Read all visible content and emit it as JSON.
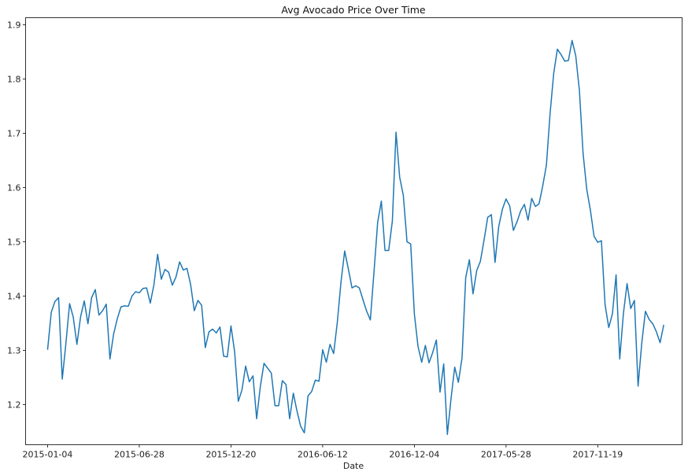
{
  "chart_data": {
    "type": "line",
    "title": "Avg Avocado Price Over Time",
    "xlabel": "Date",
    "ylabel": "",
    "x_tick_labels": [
      "2015-01-04",
      "2015-06-28",
      "2015-12-20",
      "2016-06-12",
      "2016-12-04",
      "2017-05-28",
      "2017-11-19"
    ],
    "y_tick_labels": [
      "1.2",
      "1.3",
      "1.4",
      "1.5",
      "1.6",
      "1.7",
      "1.8",
      "1.9"
    ],
    "ylim": [
      1.126,
      1.913
    ],
    "xlim": [
      "2014-11-23",
      "2018-04-29"
    ],
    "grid": false,
    "line_color": "#1f77b4",
    "x": [
      "2015-01-04",
      "2015-01-11",
      "2015-01-18",
      "2015-01-25",
      "2015-02-01",
      "2015-02-08",
      "2015-02-15",
      "2015-02-22",
      "2015-03-01",
      "2015-03-08",
      "2015-03-15",
      "2015-03-22",
      "2015-03-29",
      "2015-04-05",
      "2015-04-12",
      "2015-04-19",
      "2015-04-26",
      "2015-05-03",
      "2015-05-10",
      "2015-05-17",
      "2015-05-24",
      "2015-05-31",
      "2015-06-07",
      "2015-06-14",
      "2015-06-21",
      "2015-06-28",
      "2015-07-05",
      "2015-07-12",
      "2015-07-19",
      "2015-07-26",
      "2015-08-02",
      "2015-08-09",
      "2015-08-16",
      "2015-08-23",
      "2015-08-30",
      "2015-09-06",
      "2015-09-13",
      "2015-09-20",
      "2015-09-27",
      "2015-10-04",
      "2015-10-11",
      "2015-10-18",
      "2015-10-25",
      "2015-11-01",
      "2015-11-08",
      "2015-11-15",
      "2015-11-22",
      "2015-11-29",
      "2015-12-06",
      "2015-12-13",
      "2015-12-20",
      "2015-12-27",
      "2016-01-03",
      "2016-01-10",
      "2016-01-17",
      "2016-01-24",
      "2016-01-31",
      "2016-02-07",
      "2016-02-14",
      "2016-02-21",
      "2016-02-28",
      "2016-03-06",
      "2016-03-13",
      "2016-03-20",
      "2016-03-27",
      "2016-04-03",
      "2016-04-10",
      "2016-04-17",
      "2016-04-24",
      "2016-05-01",
      "2016-05-08",
      "2016-05-15",
      "2016-05-22",
      "2016-05-29",
      "2016-06-05",
      "2016-06-12",
      "2016-06-19",
      "2016-06-26",
      "2016-07-03",
      "2016-07-10",
      "2016-07-17",
      "2016-07-24",
      "2016-07-31",
      "2016-08-07",
      "2016-08-14",
      "2016-08-21",
      "2016-08-28",
      "2016-09-04",
      "2016-09-11",
      "2016-09-18",
      "2016-09-25",
      "2016-10-02",
      "2016-10-09",
      "2016-10-16",
      "2016-10-23",
      "2016-10-30",
      "2016-11-06",
      "2016-11-13",
      "2016-11-20",
      "2016-11-27",
      "2016-12-04",
      "2016-12-11",
      "2016-12-18",
      "2016-12-25",
      "2017-01-01",
      "2017-01-08",
      "2017-01-15",
      "2017-01-22",
      "2017-01-29",
      "2017-02-05",
      "2017-02-12",
      "2017-02-19",
      "2017-02-26",
      "2017-03-05",
      "2017-03-12",
      "2017-03-19",
      "2017-03-26",
      "2017-04-02",
      "2017-04-09",
      "2017-04-16",
      "2017-04-23",
      "2017-04-30",
      "2017-05-07",
      "2017-05-14",
      "2017-05-21",
      "2017-05-28",
      "2017-06-04",
      "2017-06-11",
      "2017-06-18",
      "2017-06-25",
      "2017-07-02",
      "2017-07-09",
      "2017-07-16",
      "2017-07-23",
      "2017-07-30",
      "2017-08-06",
      "2017-08-13",
      "2017-08-20",
      "2017-08-27",
      "2017-09-03",
      "2017-09-10",
      "2017-09-17",
      "2017-09-24",
      "2017-10-01",
      "2017-10-08",
      "2017-10-15",
      "2017-10-22",
      "2017-10-29",
      "2017-11-05",
      "2017-11-12",
      "2017-11-19",
      "2017-11-26",
      "2017-12-03",
      "2017-12-10",
      "2017-12-17",
      "2017-12-24",
      "2017-12-31",
      "2018-01-07",
      "2018-01-14",
      "2018-01-21",
      "2018-01-28",
      "2018-02-04",
      "2018-02-11",
      "2018-02-18",
      "2018-02-25",
      "2018-03-04",
      "2018-03-11",
      "2018-03-18",
      "2018-03-25"
    ],
    "series": [
      {
        "name": "",
        "values": [
          1.301,
          1.37,
          1.39,
          1.397,
          1.247,
          1.313,
          1.386,
          1.361,
          1.311,
          1.362,
          1.391,
          1.349,
          1.397,
          1.412,
          1.365,
          1.373,
          1.385,
          1.284,
          1.33,
          1.358,
          1.38,
          1.382,
          1.381,
          1.4,
          1.408,
          1.406,
          1.414,
          1.415,
          1.387,
          1.421,
          1.477,
          1.431,
          1.449,
          1.444,
          1.42,
          1.435,
          1.463,
          1.448,
          1.451,
          1.421,
          1.373,
          1.392,
          1.383,
          1.305,
          1.334,
          1.339,
          1.332,
          1.343,
          1.289,
          1.288,
          1.345,
          1.297,
          1.206,
          1.227,
          1.271,
          1.242,
          1.253,
          1.174,
          1.233,
          1.276,
          1.267,
          1.258,
          1.198,
          1.198,
          1.244,
          1.237,
          1.174,
          1.221,
          1.188,
          1.16,
          1.148,
          1.216,
          1.224,
          1.245,
          1.243,
          1.301,
          1.278,
          1.311,
          1.294,
          1.352,
          1.426,
          1.483,
          1.45,
          1.415,
          1.419,
          1.415,
          1.393,
          1.372,
          1.356,
          1.445,
          1.536,
          1.575,
          1.484,
          1.484,
          1.538,
          1.702,
          1.619,
          1.585,
          1.5,
          1.496,
          1.367,
          1.307,
          1.278,
          1.309,
          1.277,
          1.296,
          1.319,
          1.223,
          1.275,
          1.145,
          1.211,
          1.269,
          1.241,
          1.286,
          1.434,
          1.467,
          1.404,
          1.447,
          1.464,
          1.503,
          1.545,
          1.55,
          1.462,
          1.528,
          1.56,
          1.579,
          1.566,
          1.521,
          1.537,
          1.557,
          1.569,
          1.54,
          1.58,
          1.565,
          1.57,
          1.603,
          1.641,
          1.736,
          1.811,
          1.855,
          1.845,
          1.833,
          1.834,
          1.871,
          1.843,
          1.779,
          1.663,
          1.597,
          1.558,
          1.51,
          1.499,
          1.502,
          1.384,
          1.342,
          1.367,
          1.439,
          1.284,
          1.368,
          1.423,
          1.377,
          1.392,
          1.234,
          1.313,
          1.372,
          1.357,
          1.349,
          1.334,
          1.314,
          1.347
        ]
      }
    ]
  }
}
